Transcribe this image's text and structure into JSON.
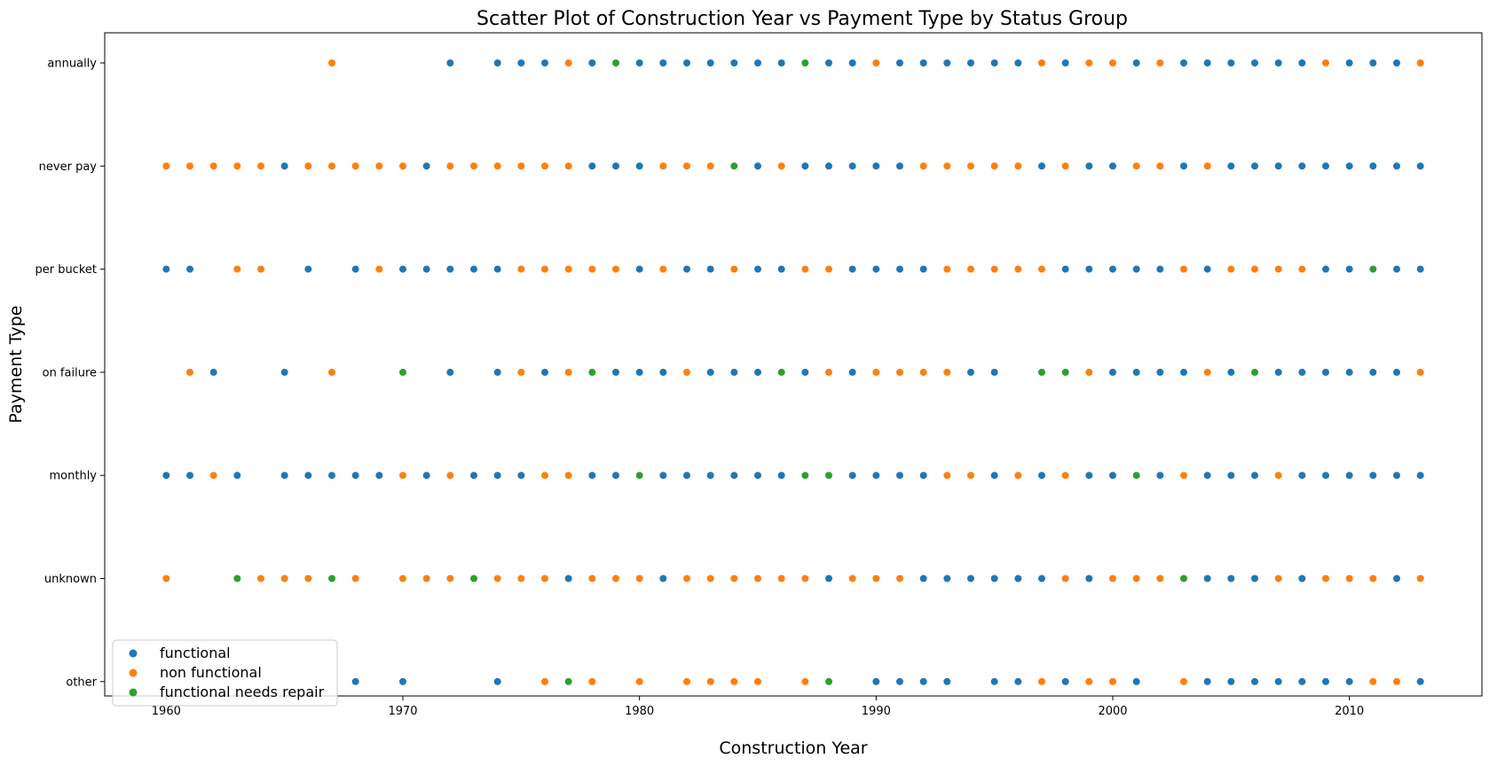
{
  "chart_data": {
    "type": "scatter",
    "title": "Scatter Plot of Construction Year vs Payment Type by Status Group",
    "xlabel": "Construction Year",
    "ylabel": "Payment Type",
    "xlim": [
      1957.4,
      2015.6
    ],
    "x_ticks": [
      1960,
      1970,
      1980,
      1990,
      2000,
      2010
    ],
    "categories": [
      "annually",
      "never pay",
      "per bucket",
      "on failure",
      "monthly",
      "unknown",
      "other"
    ],
    "legend_position": "lower-left",
    "grid": false,
    "series": [
      {
        "name": "functional",
        "color": "#1f77b4",
        "points": {
          "annually": [
            1972,
            1974,
            1975,
            1976,
            1978,
            1980,
            1981,
            1982,
            1983,
            1984,
            1985,
            1986,
            1988,
            1989,
            1991,
            1992,
            1993,
            1994,
            1995,
            1996,
            1998,
            2001,
            2003,
            2004,
            2005,
            2006,
            2007,
            2008,
            2010,
            2011,
            2012
          ],
          "never pay": [
            1965,
            1971,
            1978,
            1979,
            1980,
            1985,
            1987,
            1988,
            1989,
            1990,
            1991,
            1997,
            1999,
            2000,
            2003,
            2005,
            2006,
            2007,
            2008,
            2009,
            2010,
            2011,
            2012,
            2013
          ],
          "per bucket": [
            1960,
            1961,
            1966,
            1968,
            1970,
            1971,
            1972,
            1973,
            1974,
            1980,
            1982,
            1983,
            1985,
            1986,
            1989,
            1990,
            1991,
            1992,
            1998,
            1999,
            2000,
            2001,
            2002,
            2004,
            2009,
            2010,
            2012,
            2013
          ],
          "on failure": [
            1962,
            1965,
            1972,
            1974,
            1976,
            1979,
            1980,
            1981,
            1983,
            1984,
            1985,
            1987,
            1989,
            1994,
            1995,
            2000,
            2001,
            2002,
            2003,
            2005,
            2007,
            2008,
            2009,
            2010,
            2011,
            2012
          ],
          "monthly": [
            1960,
            1961,
            1963,
            1965,
            1966,
            1967,
            1968,
            1969,
            1971,
            1973,
            1974,
            1975,
            1978,
            1979,
            1981,
            1982,
            1983,
            1984,
            1985,
            1986,
            1989,
            1990,
            1991,
            1992,
            1995,
            1997,
            1999,
            2000,
            2002,
            2004,
            2005,
            2006,
            2008,
            2009,
            2010,
            2011,
            2012,
            2013
          ],
          "unknown": [
            1977,
            1981,
            1988,
            1992,
            1993,
            1994,
            1995,
            1996,
            1997,
            1999,
            2004,
            2005,
            2006,
            2008,
            2012
          ],
          "other": [
            1968,
            1970,
            1974,
            1990,
            1991,
            1992,
            1993,
            1995,
            1996,
            1998,
            2001,
            2004,
            2005,
            2006,
            2007,
            2008,
            2009,
            2010,
            2013
          ]
        }
      },
      {
        "name": "non functional",
        "color": "#ff7f0e",
        "points": {
          "annually": [
            1967,
            1977,
            1990,
            1997,
            1999,
            2000,
            2002,
            2009,
            2013
          ],
          "never pay": [
            1960,
            1961,
            1962,
            1963,
            1964,
            1966,
            1967,
            1968,
            1969,
            1970,
            1972,
            1973,
            1974,
            1975,
            1976,
            1977,
            1981,
            1982,
            1983,
            1986,
            1992,
            1993,
            1994,
            1995,
            1996,
            1998,
            2001,
            2002,
            2004
          ],
          "per bucket": [
            1963,
            1964,
            1969,
            1975,
            1976,
            1977,
            1978,
            1979,
            1981,
            1984,
            1987,
            1988,
            1993,
            1994,
            1995,
            1996,
            1997,
            2003,
            2005,
            2006,
            2007,
            2008
          ],
          "on failure": [
            1961,
            1967,
            1975,
            1977,
            1982,
            1988,
            1990,
            1991,
            1992,
            1993,
            1999,
            2004,
            2013
          ],
          "monthly": [
            1962,
            1970,
            1972,
            1976,
            1977,
            1993,
            1994,
            1996,
            1998,
            2003,
            2007
          ],
          "unknown": [
            1960,
            1964,
            1965,
            1966,
            1968,
            1970,
            1971,
            1972,
            1974,
            1975,
            1976,
            1978,
            1979,
            1980,
            1982,
            1983,
            1984,
            1985,
            1986,
            1987,
            1989,
            1990,
            1991,
            1998,
            2000,
            2001,
            2002,
            2007,
            2009,
            2010,
            2011,
            2013
          ],
          "other": [
            1976,
            1978,
            1980,
            1982,
            1983,
            1984,
            1985,
            1987,
            1997,
            1999,
            2000,
            2003,
            2011,
            2012
          ]
        }
      },
      {
        "name": "functional needs repair",
        "color": "#2ca02c",
        "points": {
          "annually": [
            1979,
            1987
          ],
          "never pay": [
            1984
          ],
          "per bucket": [
            2011
          ],
          "on failure": [
            1970,
            1978,
            1986,
            1997,
            1998,
            2006
          ],
          "monthly": [
            1980,
            1987,
            1988,
            2001
          ],
          "unknown": [
            1963,
            1967,
            1973,
            2003
          ],
          "other": [
            1977,
            1988
          ]
        }
      }
    ]
  }
}
